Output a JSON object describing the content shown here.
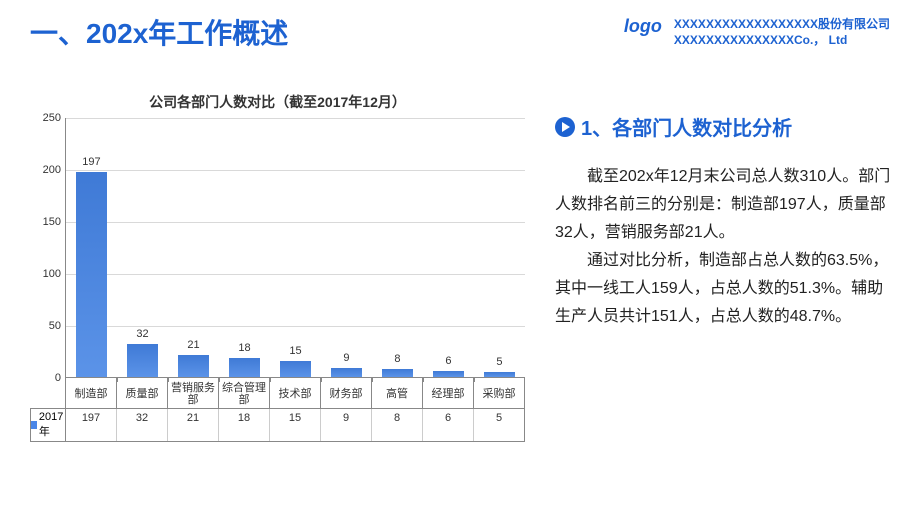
{
  "header": {
    "title": "一、202x年工作概述",
    "logo": "logo",
    "company_cn": "XXXXXXXXXXXXXXXXXX股份有限公司",
    "company_en": "XXXXXXXXXXXXXXXCo.， Ltd"
  },
  "chart": {
    "type": "bar",
    "title": "公司各部门人数对比（截至2017年12月）",
    "title_fontsize": 14,
    "categories": [
      "制造部",
      "质量部",
      "营销服务部",
      "综合管理部",
      "技术部",
      "财务部",
      "高管",
      "经理部",
      "采购部"
    ],
    "values": [
      197,
      32,
      21,
      18,
      15,
      9,
      8,
      6,
      5
    ],
    "series_label": "2017年",
    "ylim": [
      0,
      250
    ],
    "ytick_step": 50,
    "yticks": [
      0,
      50,
      100,
      150,
      200,
      250
    ],
    "bar_color_top": "#3f7ad6",
    "bar_color_bottom": "#5b93e8",
    "grid_color": "#d9d9d9",
    "axis_color": "#888888",
    "background_color": "#ffffff",
    "label_fontsize": 11,
    "bar_width_ratio": 0.62
  },
  "section": {
    "heading": "1、各部门人数对比分析",
    "paragraph1": "截至202x年12月末公司总人数310人。部门人数排名前三的分别是：制造部197人，质量部32人，营销服务部21人。",
    "paragraph2": "通过对比分析，制造部占总人数的63.5%，其中一线工人159人，占总人数的51.3%。辅助生产人员共计151人，占总人数的48.7%。"
  },
  "colors": {
    "primary": "#1d62d1",
    "text": "#222222"
  }
}
